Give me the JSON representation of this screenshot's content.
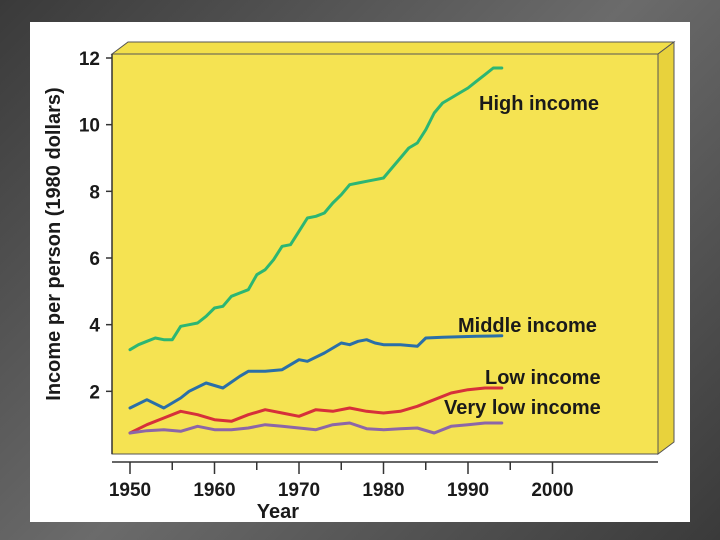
{
  "chart_data": {
    "type": "line",
    "title": "",
    "xlabel": "Year",
    "ylabel": "Income per person (1980 dollars)",
    "xlim": [
      1950,
      2000
    ],
    "ylim": [
      0,
      12
    ],
    "x_ticks": [
      1950,
      1960,
      1970,
      1980,
      1990,
      2000
    ],
    "y_ticks": [
      2,
      4,
      6,
      8,
      10,
      12
    ],
    "grid": false,
    "legend": "inline labels at line ends",
    "colors": {
      "plot_background": "#f5e352",
      "plot_side": "#e8d23c",
      "high": "#2cb673",
      "middle": "#2a6fa8",
      "low": "#d6303a",
      "very_low": "#8c66a8"
    },
    "series": [
      {
        "name": "High income",
        "color_key": "high",
        "x": [
          1950,
          1951,
          1952,
          1953,
          1954,
          1955,
          1956,
          1957,
          1958,
          1959,
          1960,
          1961,
          1962,
          1963,
          1964,
          1965,
          1966,
          1967,
          1968,
          1969,
          1970,
          1971,
          1972,
          1973,
          1974,
          1975,
          1976,
          1977,
          1978,
          1979,
          1980,
          1981,
          1982,
          1983,
          1984,
          1985,
          1986,
          1987,
          1988,
          1989,
          1990,
          1991,
          1992,
          1993,
          1994
        ],
        "y": [
          3.25,
          3.4,
          3.5,
          3.6,
          3.55,
          3.55,
          3.95,
          4.0,
          4.05,
          4.25,
          4.5,
          4.55,
          4.85,
          4.95,
          5.05,
          5.5,
          5.65,
          5.95,
          6.35,
          6.4,
          6.8,
          7.2,
          7.25,
          7.35,
          7.65,
          7.9,
          8.2,
          8.25,
          8.3,
          8.35,
          8.4,
          8.7,
          9.0,
          9.3,
          9.45,
          9.85,
          10.35,
          10.65,
          10.8,
          10.95,
          11.1,
          11.3,
          11.5,
          11.7,
          11.7
        ]
      },
      {
        "name": "Middle income",
        "color_key": "middle",
        "x": [
          1950,
          1952,
          1954,
          1956,
          1957,
          1959,
          1961,
          1963,
          1964,
          1966,
          1968,
          1970,
          1971,
          1973,
          1975,
          1976,
          1977,
          1978,
          1979,
          1980,
          1982,
          1984,
          1985,
          1987,
          1989,
          1991,
          1993,
          1994
        ],
        "y": [
          1.5,
          1.75,
          1.5,
          1.8,
          2.0,
          2.25,
          2.1,
          2.45,
          2.6,
          2.6,
          2.65,
          2.95,
          2.9,
          3.15,
          3.45,
          3.4,
          3.5,
          3.55,
          3.45,
          3.4,
          3.4,
          3.35,
          3.6,
          3.62,
          3.64,
          3.65,
          3.66,
          3.67
        ]
      },
      {
        "name": "Low income",
        "color_key": "low",
        "x": [
          1950,
          1952,
          1954,
          1956,
          1958,
          1960,
          1962,
          1964,
          1966,
          1968,
          1970,
          1972,
          1974,
          1976,
          1978,
          1980,
          1982,
          1984,
          1986,
          1988,
          1990,
          1992,
          1994
        ],
        "y": [
          0.75,
          1.0,
          1.2,
          1.4,
          1.3,
          1.15,
          1.1,
          1.3,
          1.45,
          1.35,
          1.25,
          1.45,
          1.4,
          1.5,
          1.4,
          1.35,
          1.4,
          1.55,
          1.75,
          1.95,
          2.05,
          2.1,
          2.1
        ]
      },
      {
        "name": "Very low income",
        "color_key": "very_low",
        "x": [
          1950,
          1952,
          1954,
          1956,
          1958,
          1960,
          1962,
          1964,
          1966,
          1968,
          1970,
          1972,
          1974,
          1976,
          1978,
          1980,
          1982,
          1984,
          1986,
          1988,
          1990,
          1992,
          1994
        ],
        "y": [
          0.75,
          0.82,
          0.85,
          0.8,
          0.95,
          0.85,
          0.85,
          0.9,
          1.0,
          0.95,
          0.9,
          0.85,
          1.0,
          1.05,
          0.88,
          0.85,
          0.88,
          0.9,
          0.75,
          0.95,
          1.0,
          1.05,
          1.05
        ]
      }
    ]
  }
}
